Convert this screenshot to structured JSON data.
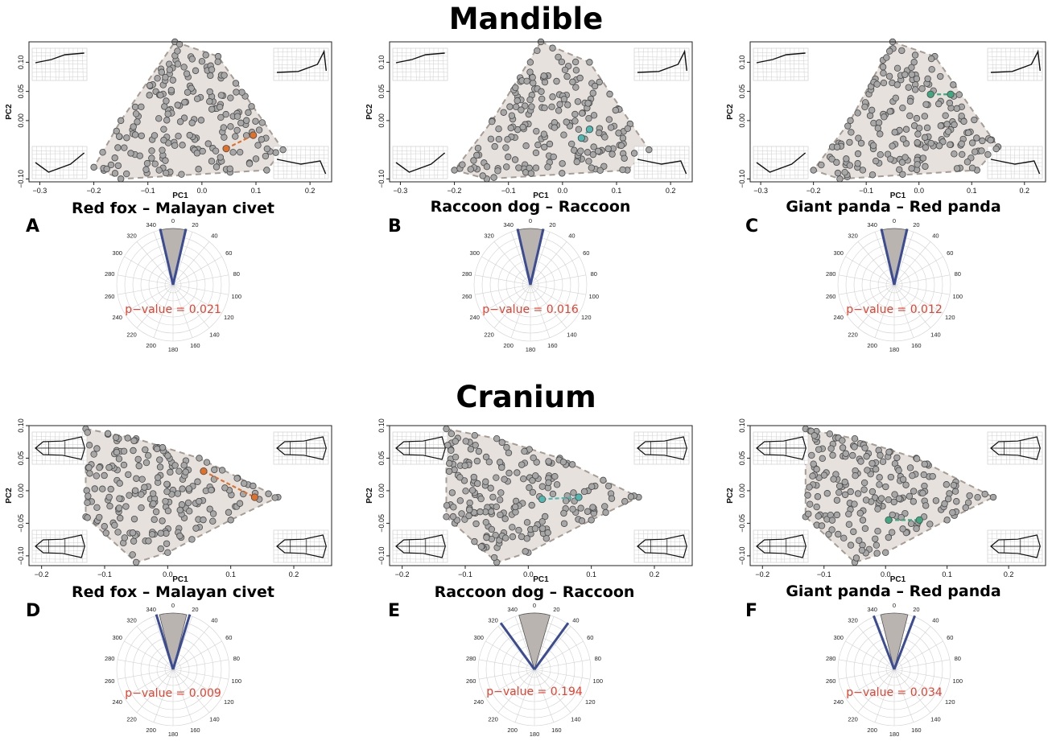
{
  "sections": [
    {
      "id": "mandible",
      "title": "Mandible"
    },
    {
      "id": "cranium",
      "title": "Cranium"
    }
  ],
  "colors": {
    "hull_fill": "#e6e1dc",
    "hull_edge": "#a69c93",
    "point_fill": "#a7a7a7",
    "point_edge": "#4a4a4a",
    "red_fox_pair": "#e0702a",
    "raccoon_pair": "#4fb8b3",
    "panda_pair": "#3fa882",
    "polar_sector": "#b9b4af",
    "polar_line": "#3b4c94",
    "pvalue_text": "#e8402f"
  },
  "thumbnail_icons": {
    "mandible": "mandible-deformation-grid-icon",
    "cranium": "cranium-deformation-grid-icon"
  },
  "chart_data": [
    {
      "panel": "A",
      "section": "mandible",
      "type": "scatter",
      "title": "Red fox – Malayan civet",
      "xlabel": "PC1",
      "ylabel": "PC2",
      "xlim": [
        -0.32,
        0.24
      ],
      "ylim": [
        -0.105,
        0.135
      ],
      "xticks": [
        -0.3,
        -0.2,
        -0.1,
        0.0,
        0.1,
        0.2
      ],
      "xtick_labels": [
        "−0.3",
        "−0.2",
        "−0.1",
        "0.0",
        "0.1",
        "0.2"
      ],
      "yticks": [
        -0.1,
        0.0,
        0.05,
        0.1
      ],
      "ytick_labels": [
        "−0.10",
        "0.00",
        "0.05",
        "0.10"
      ],
      "hull": [
        [
          -0.05,
          0.135
        ],
        [
          0.03,
          0.11
        ],
        [
          0.15,
          -0.05
        ],
        [
          0.12,
          -0.085
        ],
        [
          -0.15,
          -0.1
        ],
        [
          -0.2,
          -0.08
        ],
        [
          -0.15,
          0.0
        ]
      ],
      "seed": 11,
      "n_points": 190,
      "highlight": {
        "color_key": "red_fox_pair",
        "points": [
          [
            0.045,
            -0.048
          ],
          [
            0.095,
            -0.025
          ]
        ]
      },
      "polar": {
        "type": "polar",
        "angle_labels": [
          "0",
          "20",
          "40",
          "60",
          "80",
          "100",
          "120",
          "140",
          "160",
          "180",
          "200",
          "220",
          "240",
          "260",
          "280",
          "300",
          "320",
          "340"
        ],
        "sector_deg": [
          -12,
          12
        ],
        "line_deg": [
          -13,
          13
        ],
        "pvalue_label": "p−value = 0.021"
      }
    },
    {
      "panel": "B",
      "section": "mandible",
      "type": "scatter",
      "title": "Raccoon dog – Raccoon",
      "xlabel": "PC1",
      "ylabel": "PC2",
      "xlim": [
        -0.32,
        0.24
      ],
      "ylim": [
        -0.105,
        0.135
      ],
      "xticks": [
        -0.3,
        -0.2,
        -0.1,
        0.0,
        0.1,
        0.2
      ],
      "xtick_labels": [
        "−0.3",
        "−0.2",
        "−0.1",
        "0.0",
        "0.1",
        "0.2"
      ],
      "yticks": [
        -0.1,
        0.0,
        0.05,
        0.1
      ],
      "ytick_labels": [
        "−0.10",
        "0.00",
        "0.05",
        "0.10"
      ],
      "hull": [
        [
          -0.04,
          0.135
        ],
        [
          0.05,
          0.1
        ],
        [
          0.16,
          -0.05
        ],
        [
          0.12,
          -0.085
        ],
        [
          -0.14,
          -0.1
        ],
        [
          -0.2,
          -0.085
        ],
        [
          -0.13,
          0.0
        ]
      ],
      "seed": 23,
      "n_points": 190,
      "highlight": {
        "color_key": "raccoon_pair",
        "points": [
          [
            0.035,
            -0.03
          ],
          [
            0.05,
            -0.015
          ]
        ]
      },
      "polar": {
        "type": "polar",
        "angle_labels": [
          "0",
          "20",
          "40",
          "60",
          "80",
          "100",
          "120",
          "140",
          "160",
          "180",
          "200",
          "220",
          "240",
          "260",
          "280",
          "300",
          "320",
          "340"
        ],
        "sector_deg": [
          -12,
          12
        ],
        "line_deg": [
          -13,
          13
        ],
        "pvalue_label": "p−value = 0.016"
      }
    },
    {
      "panel": "C",
      "section": "mandible",
      "type": "scatter",
      "title": "Giant panda – Red panda",
      "xlabel": "PC1",
      "ylabel": "PC2",
      "xlim": [
        -0.32,
        0.24
      ],
      "ylim": [
        -0.105,
        0.135
      ],
      "xticks": [
        -0.3,
        -0.2,
        -0.1,
        0.0,
        0.1,
        0.2
      ],
      "xtick_labels": [
        "−0.3",
        "−0.2",
        "−0.1",
        "0.0",
        "0.1",
        "0.2"
      ],
      "yticks": [
        -0.1,
        0.0,
        0.05,
        0.1
      ],
      "ytick_labels": [
        "−0.10",
        "0.00",
        "0.05",
        "0.10"
      ],
      "hull": [
        [
          -0.05,
          0.135
        ],
        [
          0.03,
          0.11
        ],
        [
          0.15,
          -0.045
        ],
        [
          0.11,
          -0.085
        ],
        [
          -0.15,
          -0.1
        ],
        [
          -0.2,
          -0.085
        ],
        [
          -0.13,
          0.0
        ]
      ],
      "seed": 37,
      "n_points": 190,
      "highlight": {
        "color_key": "panda_pair",
        "points": [
          [
            0.022,
            0.045
          ],
          [
            0.06,
            0.045
          ]
        ]
      },
      "polar": {
        "type": "polar",
        "angle_labels": [
          "0",
          "20",
          "40",
          "60",
          "80",
          "100",
          "120",
          "140",
          "160",
          "180",
          "200",
          "220",
          "240",
          "260",
          "280",
          "300",
          "320",
          "340"
        ],
        "sector_deg": [
          -12,
          12
        ],
        "line_deg": [
          -13,
          13
        ],
        "pvalue_label": "p−value = 0.012"
      }
    },
    {
      "panel": "D",
      "section": "cranium",
      "type": "scatter",
      "title": "Red fox – Malayan civet",
      "xlabel": "PC1",
      "ylabel": "PC2",
      "xlim": [
        -0.22,
        0.26
      ],
      "ylim": [
        -0.115,
        0.1
      ],
      "xticks": [
        -0.2,
        -0.1,
        0.0,
        0.1,
        0.2
      ],
      "xtick_labels": [
        "−0.2",
        "−0.1",
        "0.0",
        "0.1",
        "0.2"
      ],
      "yticks": [
        -0.1,
        -0.05,
        0.0,
        0.05,
        0.1
      ],
      "ytick_labels": [
        "−0.10",
        "−0.05",
        "0.00",
        "0.05",
        "0.10"
      ],
      "hull": [
        [
          -0.13,
          0.095
        ],
        [
          -0.05,
          0.08
        ],
        [
          0.05,
          0.05
        ],
        [
          0.175,
          -0.01
        ],
        [
          0.1,
          -0.045
        ],
        [
          0.0,
          -0.095
        ],
        [
          -0.05,
          -0.11
        ],
        [
          -0.13,
          -0.04
        ]
      ],
      "seed": 53,
      "n_points": 195,
      "highlight": {
        "color_key": "red_fox_pair",
        "points": [
          [
            0.057,
            0.03
          ],
          [
            0.138,
            -0.01
          ]
        ]
      },
      "polar": {
        "type": "polar",
        "angle_labels": [
          "0",
          "20",
          "40",
          "60",
          "80",
          "100",
          "120",
          "140",
          "160",
          "180",
          "200",
          "220",
          "240",
          "260",
          "280",
          "300",
          "320",
          "340"
        ],
        "sector_deg": [
          -14,
          14
        ],
        "line_deg": [
          -17,
          17
        ],
        "pvalue_label": "p−value = 0.009"
      }
    },
    {
      "panel": "E",
      "section": "cranium",
      "type": "scatter",
      "title": "Raccoon dog – Raccoon",
      "xlabel": "PC1",
      "ylabel": "PC2",
      "xlim": [
        -0.22,
        0.26
      ],
      "ylim": [
        -0.115,
        0.1
      ],
      "xticks": [
        -0.2,
        -0.1,
        0.0,
        0.1,
        0.2
      ],
      "xtick_labels": [
        "−0.2",
        "−0.1",
        "0.0",
        "0.1",
        "0.2"
      ],
      "yticks": [
        -0.1,
        -0.05,
        0.0,
        0.05,
        0.1
      ],
      "ytick_labels": [
        "−0.10",
        "−0.05",
        "0.00",
        "0.05",
        "0.10"
      ],
      "hull": [
        [
          -0.13,
          0.095
        ],
        [
          -0.05,
          0.08
        ],
        [
          0.05,
          0.05
        ],
        [
          0.175,
          -0.01
        ],
        [
          0.1,
          -0.045
        ],
        [
          0.0,
          -0.095
        ],
        [
          -0.05,
          -0.11
        ],
        [
          -0.13,
          -0.04
        ]
      ],
      "seed": 71,
      "n_points": 195,
      "highlight": {
        "color_key": "raccoon_pair",
        "points": [
          [
            0.022,
            -0.013
          ],
          [
            0.08,
            -0.01
          ]
        ]
      },
      "polar": {
        "type": "polar",
        "angle_labels": [
          "0",
          "20",
          "40",
          "60",
          "80",
          "100",
          "120",
          "140",
          "160",
          "180",
          "200",
          "220",
          "240",
          "260",
          "280",
          "300",
          "320",
          "340"
        ],
        "sector_deg": [
          -16,
          16
        ],
        "line_deg": [
          -36,
          36
        ],
        "pvalue_label": "p−value = 0.194"
      }
    },
    {
      "panel": "F",
      "section": "cranium",
      "type": "scatter",
      "title": "Giant panda – Red panda",
      "xlabel": "PC1",
      "ylabel": "PC2",
      "xlim": [
        -0.22,
        0.26
      ],
      "ylim": [
        -0.115,
        0.1
      ],
      "xticks": [
        -0.2,
        -0.1,
        0.0,
        0.1,
        0.2
      ],
      "xtick_labels": [
        "−0.2",
        "−0.1",
        "0.0",
        "0.1",
        "0.2"
      ],
      "yticks": [
        -0.1,
        -0.05,
        0.0,
        0.05,
        0.1
      ],
      "ytick_labels": [
        "−0.10",
        "−0.05",
        "0.00",
        "0.05",
        "0.10"
      ],
      "hull": [
        [
          -0.13,
          0.095
        ],
        [
          -0.05,
          0.08
        ],
        [
          0.05,
          0.05
        ],
        [
          0.175,
          -0.01
        ],
        [
          0.1,
          -0.045
        ],
        [
          0.0,
          -0.095
        ],
        [
          -0.05,
          -0.11
        ],
        [
          -0.13,
          -0.04
        ]
      ],
      "seed": 89,
      "n_points": 195,
      "highlight": {
        "color_key": "panda_pair",
        "points": [
          [
            0.005,
            -0.045
          ],
          [
            0.055,
            -0.045
          ]
        ]
      },
      "polar": {
        "type": "polar",
        "angle_labels": [
          "0",
          "20",
          "40",
          "60",
          "80",
          "100",
          "120",
          "140",
          "160",
          "180",
          "200",
          "220",
          "240",
          "260",
          "280",
          "300",
          "320",
          "340"
        ],
        "sector_deg": [
          -14,
          14
        ],
        "line_deg": [
          -21,
          21
        ],
        "pvalue_label": "p−value = 0.034"
      }
    }
  ]
}
